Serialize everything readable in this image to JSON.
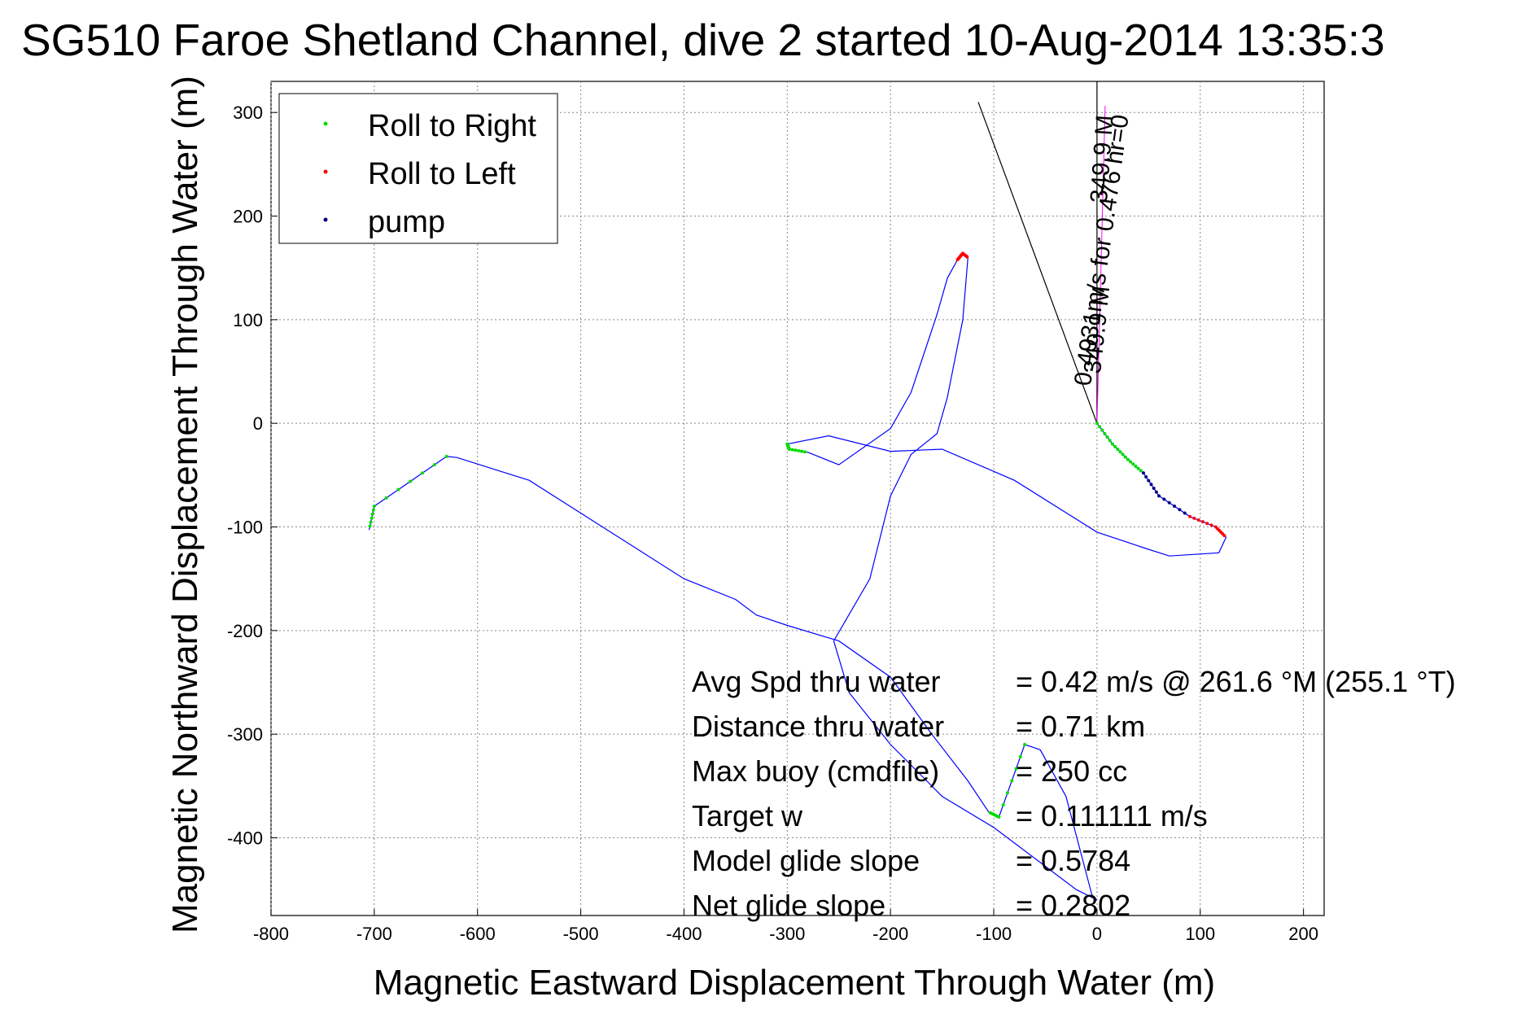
{
  "chart_data": {
    "type": "line",
    "title": "SG510 Faroe Shetland Channel, dive 2 started 10-Aug-2014 13:35:3",
    "xlabel": "Magnetic Eastward Displacement Through Water (m)",
    "ylabel": "Magnetic Northward Displacement Through Water (m)",
    "xlim": [
      -800,
      220
    ],
    "ylim": [
      -475,
      330
    ],
    "xticks": [
      -800,
      -700,
      -600,
      -500,
      -400,
      -300,
      -200,
      -100,
      0,
      100,
      200
    ],
    "yticks": [
      -400,
      -300,
      -200,
      -100,
      0,
      100,
      200,
      300
    ],
    "grid": true,
    "legend": {
      "placement": "top-left",
      "entries": [
        {
          "label": "Roll to Right",
          "color": "#00dd00"
        },
        {
          "label": "Roll to Left",
          "color": "#ff0000"
        },
        {
          "label": "pump",
          "color": "#000080"
        }
      ]
    },
    "track": {
      "color": "#0000ff",
      "x": [
        0,
        15,
        30,
        45,
        60,
        90,
        115,
        125,
        118,
        70,
        45,
        0,
        -80,
        -150,
        -200,
        -260,
        -300,
        -298,
        -280,
        -250,
        -200,
        -180,
        -155,
        -145,
        -135,
        -130,
        -125,
        -130,
        -145,
        -155,
        -180,
        -200,
        -220,
        -255,
        -240,
        -200,
        -150,
        -100,
        -60,
        -20,
        0,
        -5,
        -30,
        -55,
        -70,
        -95,
        -105,
        -125,
        -160,
        -200,
        -250,
        -300,
        -330,
        -350,
        -400,
        -460,
        -550,
        -620,
        -630,
        -700,
        -705
      ],
      "y": [
        0,
        -20,
        -35,
        -48,
        -70,
        -90,
        -100,
        -110,
        -125,
        -128,
        -120,
        -105,
        -55,
        -25,
        -27,
        -12,
        -20,
        -25,
        -28,
        -40,
        -5,
        30,
        105,
        140,
        158,
        164,
        160,
        100,
        25,
        -10,
        -30,
        -70,
        -150,
        -210,
        -260,
        -310,
        -360,
        -390,
        -420,
        -450,
        -460,
        -455,
        -360,
        -315,
        -310,
        -380,
        -375,
        -345,
        -300,
        -245,
        -210,
        -195,
        -185,
        -170,
        -150,
        -112,
        -55,
        -33,
        -32,
        -80,
        -103
      ]
    },
    "roll_right_ranges": [
      [
        0,
        48
      ],
      [
        -300,
        -25
      ],
      [
        -705,
        -85
      ],
      [
        -95,
        -380
      ]
    ],
    "roll_left_ranges": [
      [
        115,
        -105
      ],
      [
        -132,
        164
      ]
    ],
    "heading_line": {
      "end_x": -115,
      "end_y": 310
    },
    "heading_labels": [
      "0.4931m/s for 0.476 hr=0",
      "349.9 M",
      "349.9 M"
    ],
    "annotations": [
      {
        "label": "Avg Spd thru water",
        "value": "=  0.42 m/s @ 261.6 °M (255.1 °T)"
      },
      {
        "label": "Distance thru water",
        "value": "=  0.71 km"
      },
      {
        "label": "Max buoy (cmdfile)",
        "value": "= 250 cc"
      },
      {
        "label": "Target w",
        "value": "= 0.111111 m/s"
      },
      {
        "label": "Model glide slope",
        "value": "= 0.5784"
      },
      {
        "label": "Net glide slope",
        "value": "= 0.2802"
      }
    ]
  }
}
